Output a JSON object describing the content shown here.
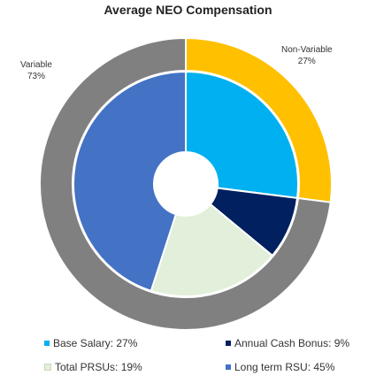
{
  "chart_data": {
    "type": "pie",
    "title": "Average NEO Compensation",
    "outer_ring": [
      {
        "name": "Non-Variable",
        "value": 27,
        "label": "27%",
        "color": "#FFC000"
      },
      {
        "name": "Variable",
        "value": 73,
        "label": "73%",
        "color": "#808080"
      }
    ],
    "inner_ring": [
      {
        "name": "Base Salary",
        "value": 27,
        "color": "#00B0F0"
      },
      {
        "name": "Annual Cash Bonus",
        "value": 9,
        "color": "#002060"
      },
      {
        "name": "Total PRSUs",
        "value": 19,
        "color": "#E2EFDA"
      },
      {
        "name": "Long term RSU",
        "value": 45,
        "color": "#4472C4"
      }
    ],
    "legend": [
      {
        "text": "Base Salary: 27%",
        "color": "#00B0F0"
      },
      {
        "text": "Annual Cash Bonus: 9%",
        "color": "#002060"
      },
      {
        "text": "Total PRSUs: 19%",
        "color": "#E2EFDA"
      },
      {
        "text": "Long term RSU: 45%",
        "color": "#4472C4"
      }
    ]
  }
}
